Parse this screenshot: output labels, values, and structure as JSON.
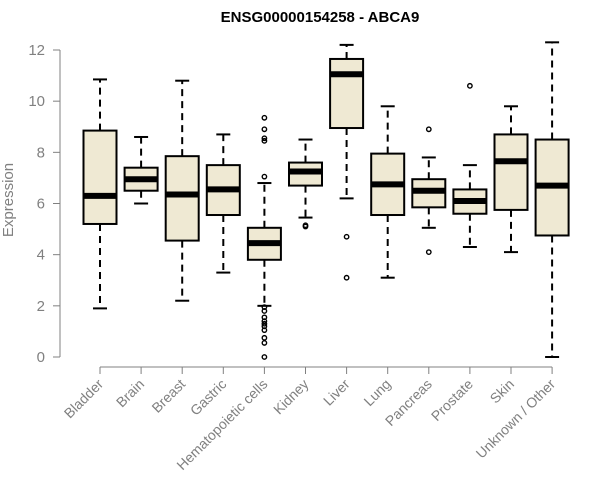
{
  "chart_data": {
    "type": "boxplot",
    "title": "ENSG00000154258 - ABCA9",
    "xlabel": "",
    "ylabel": "Expression",
    "ylim": [
      0,
      12.5
    ],
    "yticks": [
      0,
      2,
      4,
      6,
      8,
      10,
      12
    ],
    "grid": false,
    "categories": [
      "Bladder",
      "Brain",
      "Breast",
      "Gastric",
      "Hematopoietic cells",
      "Kidney",
      "Liver",
      "Lung",
      "Pancreas",
      "Prostate",
      "Skin",
      "Unknown / Other"
    ],
    "series": [
      {
        "name": "Bladder",
        "whisker_low": 1.9,
        "q1": 5.2,
        "median": 6.3,
        "q3": 8.85,
        "whisker_high": 10.85,
        "outliers": []
      },
      {
        "name": "Brain",
        "whisker_low": 6.0,
        "q1": 6.5,
        "median": 6.95,
        "q3": 7.4,
        "whisker_high": 8.6,
        "outliers": []
      },
      {
        "name": "Breast",
        "whisker_low": 2.2,
        "q1": 4.55,
        "median": 6.35,
        "q3": 7.85,
        "whisker_high": 10.8,
        "outliers": []
      },
      {
        "name": "Gastric",
        "whisker_low": 3.3,
        "q1": 5.55,
        "median": 6.55,
        "q3": 7.5,
        "whisker_high": 8.7,
        "outliers": []
      },
      {
        "name": "Hematopoietic cells",
        "whisker_low": 2.0,
        "q1": 3.8,
        "median": 4.45,
        "q3": 5.05,
        "whisker_high": 6.8,
        "outliers": [
          9.35,
          8.9,
          8.55,
          8.45,
          7.05,
          1.95,
          1.8,
          1.55,
          1.4,
          1.3,
          1.2,
          1.05,
          0.75,
          0.55,
          0.0
        ]
      },
      {
        "name": "Kidney",
        "whisker_low": 5.45,
        "q1": 6.7,
        "median": 7.25,
        "q3": 7.6,
        "whisker_high": 8.5,
        "outliers": [
          5.15,
          5.1
        ]
      },
      {
        "name": "Liver",
        "whisker_low": 6.2,
        "q1": 8.95,
        "median": 11.05,
        "q3": 11.65,
        "whisker_high": 12.2,
        "outliers": [
          4.7,
          3.1
        ]
      },
      {
        "name": "Lung",
        "whisker_low": 3.1,
        "q1": 5.55,
        "median": 6.75,
        "q3": 7.95,
        "whisker_high": 9.8,
        "outliers": []
      },
      {
        "name": "Pancreas",
        "whisker_low": 5.05,
        "q1": 5.85,
        "median": 6.5,
        "q3": 6.95,
        "whisker_high": 7.8,
        "outliers": [
          8.9,
          4.1
        ]
      },
      {
        "name": "Prostate",
        "whisker_low": 4.3,
        "q1": 5.6,
        "median": 6.1,
        "q3": 6.55,
        "whisker_high": 7.5,
        "outliers": [
          10.6
        ]
      },
      {
        "name": "Skin",
        "whisker_low": 4.1,
        "q1": 5.75,
        "median": 7.65,
        "q3": 8.7,
        "whisker_high": 9.8,
        "outliers": []
      },
      {
        "name": "Unknown / Other",
        "whisker_low": 0.0,
        "q1": 4.75,
        "median": 6.7,
        "q3": 8.5,
        "whisker_high": 12.3,
        "outliers": []
      }
    ],
    "colors": {
      "box_fill": "#efe9d3",
      "box_stroke": "#000000",
      "axis": "#808080",
      "tick_label": "#808080",
      "title": "#000000"
    }
  }
}
